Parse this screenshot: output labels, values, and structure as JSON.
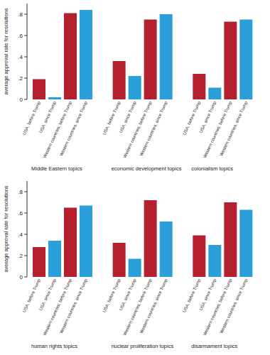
{
  "chart_data": [
    {
      "type": "bar",
      "y_label": "average approval rate for resolutions",
      "categories": [
        "Middle Eastern topics",
        "economic development topics",
        "colonialism topics"
      ],
      "series": [
        {
          "name": "USA, before Trump",
          "color": "#b5202e",
          "values": [
            0.19,
            0.36,
            0.24
          ]
        },
        {
          "name": "USA, since Trump",
          "color": "#2b9fd9",
          "values": [
            0.02,
            0.22,
            0.11
          ]
        },
        {
          "name": "Western countries, before Trump",
          "color": "#b5202e",
          "values": [
            0.81,
            0.75,
            0.73
          ]
        },
        {
          "name": "Western countries, since Trump",
          "color": "#2b9fd9",
          "values": [
            0.84,
            0.8,
            0.75
          ]
        }
      ],
      "ylim": [
        0,
        0.9
      ],
      "yticks": [
        0,
        {
          "value": 0.2,
          "label": ".2"
        },
        {
          "value": 0.4,
          "label": ".4"
        },
        {
          "value": 0.6,
          "label": ".6"
        },
        {
          "value": 0.8,
          "label": ".8"
        }
      ],
      "grid": false
    },
    {
      "type": "bar",
      "y_label": "average approval rate for resolutions",
      "categories": [
        "human rights topics",
        "nuclear proliferation topics",
        "disarmament topics"
      ],
      "series": [
        {
          "name": "USA, before Trump",
          "color": "#b5202e",
          "values": [
            0.28,
            0.32,
            0.39
          ]
        },
        {
          "name": "USA, since Trump",
          "color": "#2b9fd9",
          "values": [
            0.34,
            0.17,
            0.3
          ]
        },
        {
          "name": "Western countries, before Trump",
          "color": "#b5202e",
          "values": [
            0.65,
            0.72,
            0.7
          ]
        },
        {
          "name": "Western countries, since Trump",
          "color": "#2b9fd9",
          "values": [
            0.67,
            0.52,
            0.63
          ]
        }
      ],
      "ylim": [
        0,
        0.9
      ],
      "yticks": [
        0,
        {
          "value": 0.2,
          "label": ".2"
        },
        {
          "value": 0.4,
          "label": ".4"
        },
        {
          "value": 0.6,
          "label": ".6"
        },
        {
          "value": 0.8,
          "label": ".8"
        }
      ],
      "grid": false
    }
  ]
}
